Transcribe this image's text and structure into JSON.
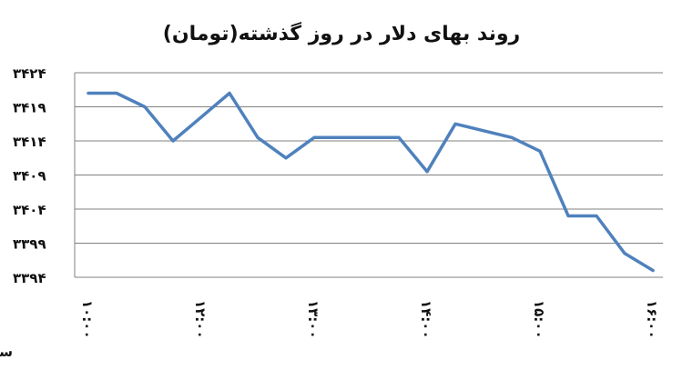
{
  "chart_data": {
    "type": "line",
    "title": "روند بهای دلار در روز گذشته(تومان)",
    "xlabel": "ساعت",
    "ylabel": "",
    "ylim": [
      3394,
      3424
    ],
    "yticks": [
      {
        "value": 3424,
        "label": "۳۴۲۴"
      },
      {
        "value": 3419,
        "label": "۳۴۱۹"
      },
      {
        "value": 3414,
        "label": "۳۴۱۴"
      },
      {
        "value": 3409,
        "label": "۳۴۰۹"
      },
      {
        "value": 3404,
        "label": "۳۴۰۴"
      },
      {
        "value": 3399,
        "label": "۳۳۹۹"
      },
      {
        "value": 3394,
        "label": "۳۳۹۴"
      }
    ],
    "xticks": [
      {
        "index": 0,
        "label": "۱۰:۰۰"
      },
      {
        "index": 4,
        "label": "۱۲:۰۰"
      },
      {
        "index": 8,
        "label": "۱۳:۰۰"
      },
      {
        "index": 12,
        "label": "۱۴:۰۰"
      },
      {
        "index": 16,
        "label": "۱۵:۰۰"
      },
      {
        "index": 20,
        "label": "۱۶:۰۰"
      }
    ],
    "grid": true,
    "series": [
      {
        "color": "#4F81BD",
        "values": [
          3421,
          3421,
          3419,
          3414,
          3417.5,
          3421,
          3414.5,
          3411.5,
          3414.5,
          3414.5,
          3414.5,
          3414.5,
          3409.5,
          3416.5,
          3415.5,
          3414.5,
          3412.5,
          3403,
          3403,
          3397.5,
          3395
        ]
      }
    ]
  }
}
